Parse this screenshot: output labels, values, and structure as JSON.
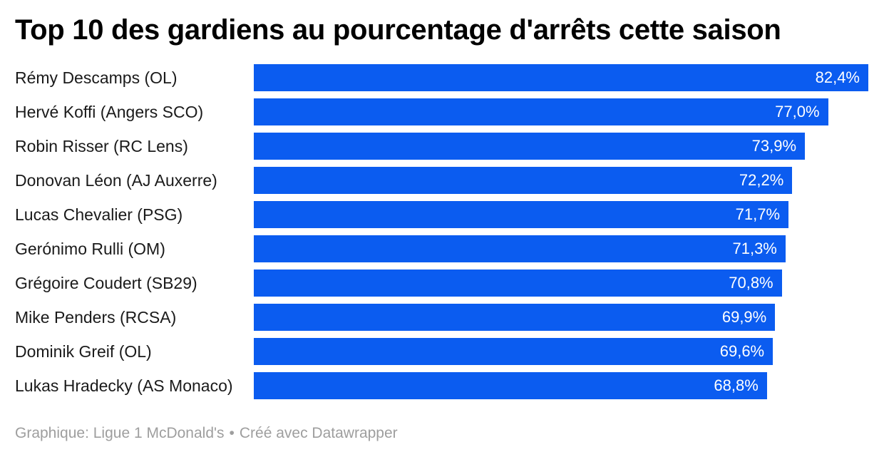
{
  "title": "Top 10 des gardiens au pourcentage d'arrêts cette saison",
  "footer": {
    "source": "Graphique: Ligue 1 McDonald's",
    "separator": "•",
    "credit": "Créé avec Datawrapper"
  },
  "colors": {
    "bar": "#0b5cf0",
    "bar_value_text": "#ffffff",
    "label_text": "#1a1a1a",
    "title_text": "#000000",
    "footer_text": "#9e9e9e",
    "background": "#ffffff"
  },
  "chart_data": {
    "type": "bar",
    "orientation": "horizontal",
    "title": "Top 10 des gardiens au pourcentage d'arrêts cette saison",
    "categories": [
      "Rémy Descamps (OL)",
      "Hervé Koffi (Angers SCO)",
      "Robin Risser (RC Lens)",
      "Donovan Léon (AJ Auxerre)",
      "Lucas Chevalier (PSG)",
      "Gerónimo Rulli (OM)",
      "Grégoire Coudert (SB29)",
      "Mike Penders (RCSA)",
      "Dominik Greif (OL)",
      "Lukas Hradecky (AS Monaco)"
    ],
    "values": [
      82.4,
      77.0,
      73.9,
      72.2,
      71.7,
      71.3,
      70.8,
      69.9,
      69.6,
      68.8
    ],
    "value_labels": [
      "82,4%",
      "77,0%",
      "73,9%",
      "72,2%",
      "71,7%",
      "71,3%",
      "70,8%",
      "69,9%",
      "69,6%",
      "68,8%"
    ],
    "value_unit": "%",
    "xlim": [
      0,
      82.4
    ],
    "grid": false,
    "legend": null,
    "value_label_position": "inside-end",
    "source": "Ligue 1 McDonald's",
    "credit": "Créé avec Datawrapper"
  }
}
